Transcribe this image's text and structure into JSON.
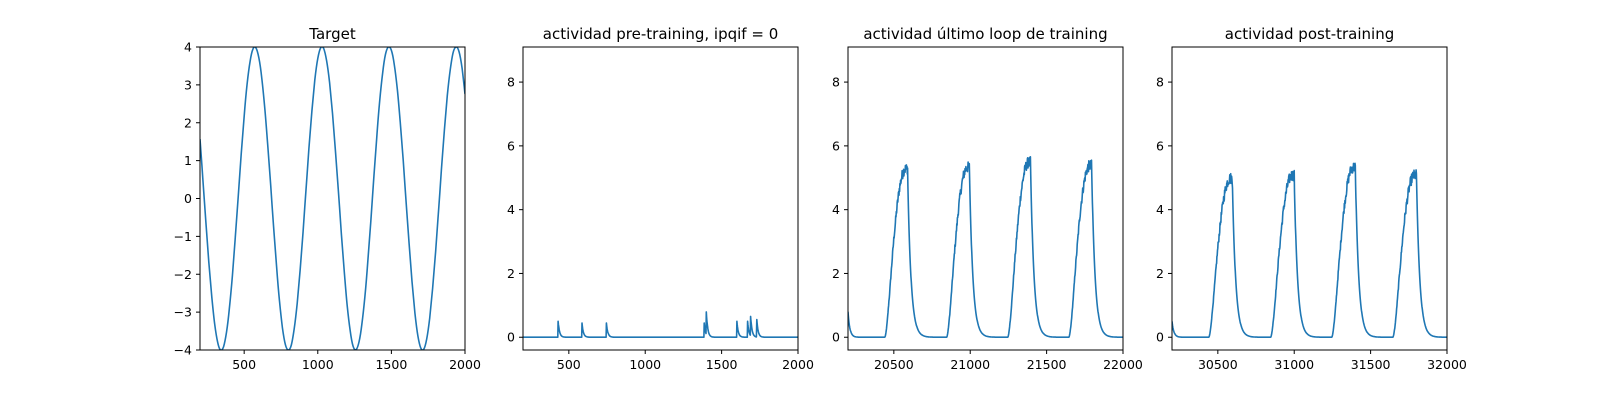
{
  "chart_data": [
    {
      "type": "line",
      "title": "Target",
      "xlim": [
        200,
        2000
      ],
      "ylim": [
        -4,
        4
      ],
      "xticks": [
        500,
        1000,
        1500,
        2000
      ],
      "yticks": [
        -4,
        -3,
        -2,
        -1,
        0,
        1,
        2,
        3,
        4
      ],
      "ytick_labels": [
        "−4",
        "−3",
        "−2",
        "−1",
        "0",
        "1",
        "2",
        "3",
        "4"
      ],
      "series": [
        {
          "color": "#1f77b4",
          "x": [
            200,
            220,
            240,
            260,
            280,
            300,
            320,
            340,
            360,
            380,
            400,
            420,
            440,
            460,
            480,
            500,
            520,
            540,
            560,
            580,
            600,
            620,
            640,
            660,
            680,
            700,
            720,
            740,
            760,
            780,
            800,
            820,
            840,
            860,
            880,
            900,
            920,
            940,
            960,
            980,
            1000,
            1020,
            1040,
            1060,
            1080,
            1100,
            1120,
            1140,
            1160,
            1180,
            1200,
            1220,
            1240,
            1260,
            1280,
            1300,
            1320,
            1340,
            1360,
            1380,
            1400,
            1420,
            1440,
            1460,
            1480,
            1500,
            1520,
            1540,
            1560,
            1580,
            1600,
            1620,
            1640,
            1660,
            1680,
            1700,
            1720,
            1740,
            1760,
            1780,
            1800,
            1820,
            1840,
            1860,
            1880,
            1900,
            1920,
            1940,
            1960,
            1980,
            2000
          ],
          "y": [
            1.57,
            0.49,
            -0.63,
            -1.68,
            -2.6,
            -3.32,
            -3.8,
            -4.0,
            -3.91,
            -3.53,
            -2.89,
            -2.04,
            -1.02,
            0.08,
            1.17,
            2.18,
            3.02,
            3.62,
            3.95,
            3.98,
            3.71,
            3.17,
            2.38,
            1.42,
            0.35,
            -0.75,
            -1.8,
            -2.71,
            -3.41,
            -3.86,
            -4.0,
            -3.87,
            -3.44,
            -2.77,
            -1.9,
            -0.87,
            0.23,
            1.32,
            2.31,
            3.13,
            3.7,
            3.98,
            3.96,
            3.64,
            3.06,
            2.25,
            1.27,
            0.19,
            -0.91,
            -1.94,
            -2.83,
            -3.49,
            -3.9,
            -3.99,
            -3.79,
            -3.31,
            -2.59,
            -1.66,
            -0.61,
            0.51,
            1.59,
            2.55,
            3.3,
            3.81,
            4.0,
            3.91,
            3.53,
            2.89,
            2.03,
            1.02,
            -0.09,
            -1.19,
            -2.19,
            -3.02,
            -3.63,
            -3.95,
            -3.98,
            -3.71,
            -3.16,
            -2.38,
            -1.41,
            -0.34,
            0.76,
            1.81,
            2.72,
            3.41,
            3.86,
            4.0,
            3.87,
            3.44,
            2.76
          ]
        }
      ]
    },
    {
      "type": "line",
      "title": "actividad pre-training, ipqif = 0",
      "xlim": [
        200,
        2000
      ],
      "ylim": [
        -0.4,
        9.1
      ],
      "xticks": [
        500,
        1000,
        1500,
        2000
      ],
      "yticks": [
        0,
        2,
        4,
        6,
        8
      ],
      "ytick_labels": [
        "0",
        "2",
        "4",
        "6",
        "8"
      ],
      "series": [
        {
          "color": "#1f77b4",
          "spikes": [
            [
              430,
              0.5
            ],
            [
              585,
              0.5
            ],
            [
              745,
              0.5
            ],
            [
              1385,
              0.5
            ],
            [
              1400,
              0.7
            ],
            [
              1600,
              0.5
            ],
            [
              1670,
              0.5
            ],
            [
              1690,
              0.6
            ],
            [
              1730,
              0.55
            ]
          ],
          "baseline": 0,
          "decay": 9
        }
      ]
    },
    {
      "type": "line",
      "title": "actividad último loop de training",
      "xlim": [
        20200,
        22000
      ],
      "ylim": [
        -0.4,
        9.1
      ],
      "xticks": [
        20500,
        21000,
        21500,
        22000
      ],
      "yticks": [
        0,
        2,
        4,
        6,
        8
      ],
      "ytick_labels": [
        "0",
        "2",
        "4",
        "6",
        "8"
      ],
      "series": [
        {
          "color": "#1f77b4",
          "init_peak": 0.8,
          "pulses": [
            {
              "start": 20440,
              "end": 20590,
              "peak": 5.3
            },
            {
              "start": 20845,
              "end": 20995,
              "peak": 5.35
            },
            {
              "start": 21245,
              "end": 21395,
              "peak": 5.5
            },
            {
              "start": 21645,
              "end": 21795,
              "peak": 5.4
            }
          ],
          "baseline": 0
        }
      ]
    },
    {
      "type": "line",
      "title": "actividad post-training",
      "xlim": [
        30200,
        32000
      ],
      "ylim": [
        -0.4,
        9.1
      ],
      "xticks": [
        30500,
        31000,
        31500,
        32000
      ],
      "yticks": [
        0,
        2,
        4,
        6,
        8
      ],
      "ytick_labels": [
        "0",
        "2",
        "4",
        "6",
        "8"
      ],
      "series": [
        {
          "color": "#1f77b4",
          "init_peak": 0.5,
          "pulses": [
            {
              "start": 30440,
              "end": 30595,
              "peak": 5.0
            },
            {
              "start": 30845,
              "end": 31000,
              "peak": 5.1
            },
            {
              "start": 31245,
              "end": 31400,
              "peak": 5.35
            },
            {
              "start": 31645,
              "end": 31800,
              "peak": 5.1
            }
          ],
          "baseline": 0
        }
      ]
    }
  ]
}
